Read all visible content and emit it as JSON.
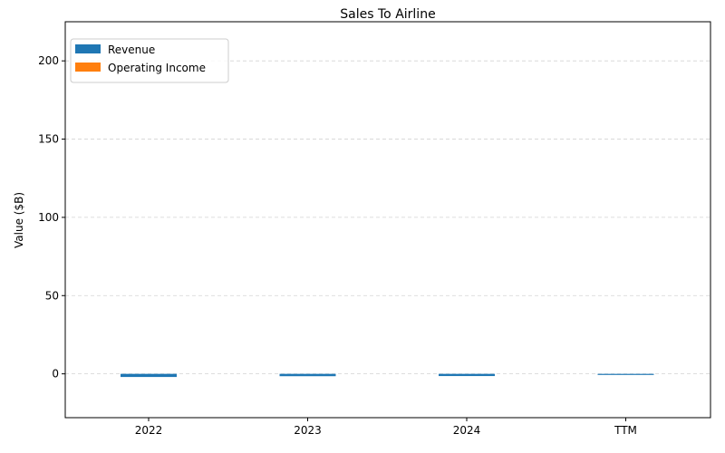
{
  "chart_data": {
    "type": "bar",
    "title": "Sales To Airline",
    "xlabel": "",
    "ylabel": "Value ($B)",
    "categories": [
      "2022",
      "2023",
      "2024",
      "TTM"
    ],
    "series": [
      {
        "name": "Revenue",
        "color": "#1f77b4",
        "values": [
          -2.0,
          -1.5,
          -1.4,
          -0.6
        ]
      },
      {
        "name": "Operating Income",
        "color": "#ff7f0e",
        "values": [
          0,
          0,
          0,
          0
        ]
      }
    ],
    "ylim": [
      -28,
      225
    ],
    "yticks": [
      0,
      50,
      100,
      150,
      200
    ],
    "grid": {
      "y": true,
      "style": "dashed",
      "color": "#d3d3d3"
    },
    "legend": {
      "position": "top-left"
    }
  }
}
